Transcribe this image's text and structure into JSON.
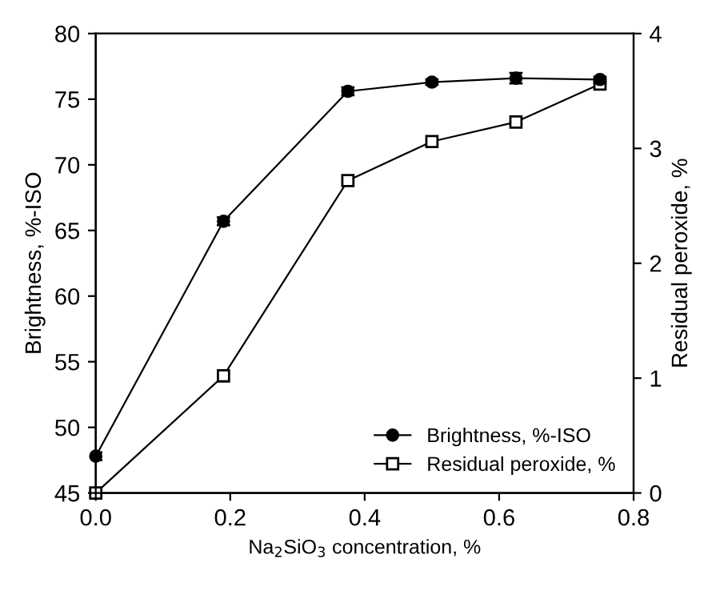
{
  "chart_data": {
    "type": "line",
    "xlabel": "Na$_{2}$SiO$_{3}$ concentration, %",
    "ylabel": "Brightness, %-ISO",
    "y2label": "Residual peroxide, %",
    "x": [
      0,
      0.19,
      0.375,
      0.5,
      0.625,
      0.75
    ],
    "series": [
      {
        "name": "Brightness, %-ISO",
        "color": "#000000",
        "values": [
          47.8,
          65.7,
          75.6,
          76.3,
          76.6,
          76.5
        ],
        "errors": [
          0.3,
          0.3,
          0.3,
          0.2,
          0.4,
          0.2
        ],
        "marker": "circle"
      },
      {
        "name": "Residual peroxide, %",
        "color": "#000000",
        "values": [
          0,
          1.02,
          2.72,
          3.06,
          3.23,
          3.56
        ],
        "axis": "y2",
        "marker": "square"
      }
    ],
    "xlim": [
      0,
      0.8
    ],
    "xticks": [
      {
        "value": 0,
        "label": "0.0"
      },
      0.2,
      0.4,
      0.6,
      0.8
    ],
    "ylim": [
      45,
      80
    ],
    "yticks": [
      45,
      50,
      55,
      60,
      65,
      70,
      75,
      80
    ],
    "y2lim": [
      0,
      4
    ],
    "y2ticks": [
      0,
      1,
      2,
      3,
      4
    ],
    "legend": "lower right",
    "grid": false,
    "line_style": "solid"
  }
}
